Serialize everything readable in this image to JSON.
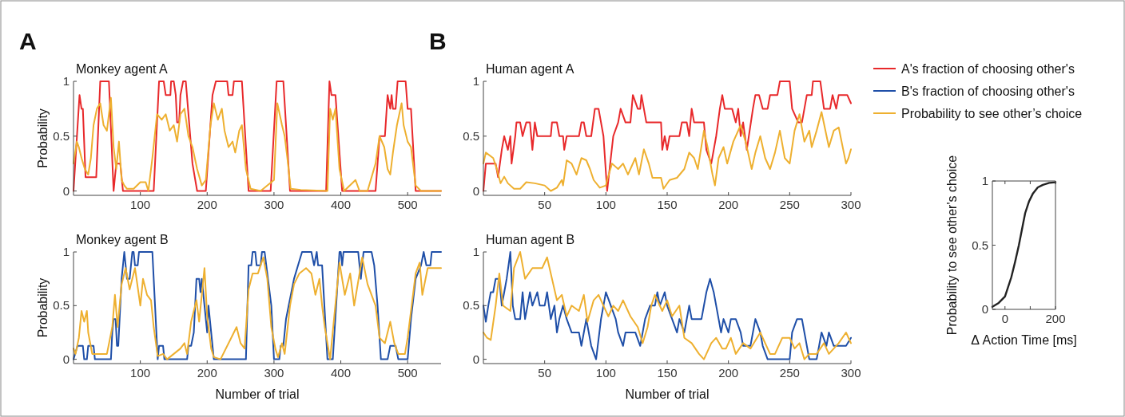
{
  "chart_data": [
    {
      "type": "line",
      "title": "Monkey agent A",
      "ylabel": "Probability",
      "annotations": [
        "A"
      ],
      "xlim": [
        0,
        550
      ],
      "xticks": [
        100,
        200,
        300,
        400,
        500
      ],
      "ylim": [
        -0.04,
        1
      ],
      "yticks": [
        0,
        0.5,
        1
      ],
      "series": [
        {
          "color": "#e8292b",
          "x": [
            0,
            9,
            12,
            14,
            18,
            34,
            40,
            53,
            60,
            64,
            70,
            74,
            120,
            128,
            135,
            138,
            145,
            146,
            150,
            153,
            155,
            158,
            160,
            164,
            168,
            178,
            185,
            198,
            208,
            213,
            230,
            232,
            238,
            240,
            252,
            262,
            295,
            304,
            314,
            324,
            378,
            383,
            386,
            392,
            402,
            452,
            458,
            466,
            470,
            474,
            476,
            478,
            482,
            485,
            497,
            500,
            505,
            512,
            550
          ],
          "values": [
            0,
            0.875,
            0.75,
            0.75,
            0.125,
            0.125,
            1,
            1,
            0,
            0.25,
            0.25,
            0,
            0,
            1,
            1,
            0.875,
            0.875,
            1,
            1,
            0.875,
            0.625,
            0.625,
            0.875,
            1,
            1,
            0.25,
            0,
            0,
            0.875,
            1,
            1,
            0.875,
            0.875,
            1,
            1,
            0,
            0,
            1,
            1,
            0,
            0,
            1,
            0.875,
            0.875,
            0,
            0,
            0.5,
            0.5,
            0.875,
            0.75,
            0.875,
            0.75,
            0.75,
            1,
            1,
            0.75,
            0.75,
            0,
            0
          ]
        },
        {
          "color": "#eeb030",
          "x": [
            0,
            5,
            8,
            12,
            17,
            22,
            26,
            30,
            35,
            40,
            45,
            50,
            56,
            60,
            64,
            68,
            72,
            76,
            80,
            90,
            100,
            108,
            112,
            118,
            125,
            132,
            138,
            144,
            150,
            155,
            160,
            166,
            172,
            178,
            185,
            192,
            198,
            205,
            210,
            216,
            222,
            226,
            232,
            238,
            242,
            248,
            252,
            258,
            265,
            280,
            300,
            305,
            312,
            316,
            320,
            325,
            340,
            380,
            384,
            388,
            392,
            398,
            405,
            422,
            428,
            440,
            452,
            458,
            465,
            470,
            474,
            478,
            484,
            491,
            494,
            500,
            505,
            512,
            520,
            550
          ],
          "values": [
            0.25,
            0.45,
            0.4,
            0.3,
            0.2,
            0.15,
            0.3,
            0.6,
            0.75,
            0.8,
            0.6,
            0.55,
            0.85,
            0.4,
            0.2,
            0.45,
            0.1,
            0.05,
            0.02,
            0.02,
            0.08,
            0.08,
            0,
            0.3,
            0.7,
            0.65,
            0.7,
            0.55,
            0.6,
            0.45,
            0.7,
            0.75,
            0.5,
            0.4,
            0.2,
            0.05,
            0.1,
            0.6,
            0.8,
            0.65,
            0.75,
            0.55,
            0.4,
            0.45,
            0.35,
            0.55,
            0.6,
            0.2,
            0.02,
            0,
            0.1,
            0.8,
            0.6,
            0.5,
            0.3,
            0.02,
            0.01,
            0,
            0.75,
            0.65,
            0.75,
            0.2,
            0,
            0.1,
            0,
            0,
            0.25,
            0.5,
            0.4,
            0.2,
            0.15,
            0.35,
            0.6,
            0.8,
            0.6,
            0.45,
            0.4,
            0.05,
            0,
            0
          ]
        }
      ]
    },
    {
      "type": "line",
      "title": "Monkey agent B",
      "xlabel": "Number of trial",
      "ylabel": "Probability",
      "xlim": [
        0,
        550
      ],
      "xticks": [
        100,
        200,
        300,
        400,
        500
      ],
      "ylim": [
        -0.04,
        1
      ],
      "yticks": [
        0,
        0.5,
        1
      ],
      "series": [
        {
          "color": "#1f4fa8",
          "x": [
            0,
            6,
            14,
            16,
            20,
            22,
            30,
            32,
            56,
            58,
            60,
            63,
            65,
            67,
            68,
            72,
            76,
            80,
            84,
            88,
            90,
            92,
            96,
            98,
            118,
            122,
            126,
            128,
            134,
            136,
            170,
            172,
            176,
            180,
            184,
            188,
            190,
            192,
            196,
            200,
            202,
            206,
            210,
            258,
            262,
            266,
            268,
            272,
            274,
            280,
            282,
            286,
            296,
            300,
            308,
            310,
            314,
            318,
            322,
            330,
            336,
            342,
            356,
            360,
            364,
            366,
            372,
            380,
            388,
            398,
            400,
            402,
            404,
            426,
            430,
            434,
            446,
            450,
            455,
            460,
            470,
            474,
            482,
            486,
            500,
            505,
            512,
            520,
            524,
            528,
            534,
            536,
            550
          ],
          "values": [
            0,
            0.125,
            0.125,
            0,
            0,
            0.125,
            0.125,
            0,
            0,
            0.25,
            0.375,
            0.375,
            0.125,
            0.125,
            0.25,
            0.75,
            1,
            0.75,
            0.75,
            1,
            1,
            0.875,
            0.875,
            1,
            1,
            0.5,
            0,
            0.125,
            0.125,
            0,
            0,
            0.125,
            0.125,
            0.25,
            0.75,
            0.75,
            0.625,
            0.75,
            0.5,
            0.25,
            0.5,
            0.25,
            0,
            0,
            0.875,
            0.875,
            1,
            1,
            0.875,
            0.875,
            1,
            1,
            0.5,
            0,
            0,
            0.125,
            0.125,
            0.375,
            0.5,
            0.75,
            0.875,
            1,
            1,
            0.875,
            1,
            0.875,
            0.875,
            0,
            0,
            1,
            1,
            0.875,
            1,
            1,
            0.75,
            1,
            1,
            0.875,
            0.5,
            0,
            0,
            0.125,
            0.125,
            0,
            0,
            0.375,
            0.75,
            0.875,
            1,
            0.875,
            0.875,
            1,
            1
          ]
        },
        {
          "color": "#eeb030",
          "x": [
            0,
            3,
            8,
            12,
            16,
            20,
            22,
            28,
            50,
            58,
            62,
            66,
            72,
            78,
            84,
            92,
            100,
            104,
            110,
            116,
            120,
            126,
            134,
            140,
            160,
            166,
            170,
            176,
            184,
            188,
            196,
            200,
            206,
            210,
            220,
            236,
            244,
            250,
            256,
            262,
            268,
            276,
            284,
            290,
            296,
            302,
            306,
            312,
            316,
            324,
            330,
            338,
            348,
            356,
            362,
            368,
            372,
            376,
            384,
            398,
            406,
            414,
            420,
            432,
            440,
            452,
            458,
            466,
            474,
            480,
            486,
            496,
            500,
            506,
            512,
            518,
            522,
            530,
            544,
            550
          ],
          "values": [
            0.1,
            0.05,
            0.2,
            0.45,
            0.35,
            0.45,
            0.25,
            0.05,
            0.05,
            0.3,
            0.6,
            0.3,
            0.7,
            0.85,
            0.65,
            0.85,
            0.5,
            0.75,
            0.6,
            0.55,
            0.3,
            0.03,
            0.05,
            0,
            0.1,
            0.15,
            0.05,
            0.35,
            0.55,
            0.35,
            0.85,
            0.4,
            0.1,
            0.02,
            0,
            0.2,
            0.3,
            0.15,
            0.1,
            0.65,
            0.8,
            0.8,
            0.95,
            0.75,
            0.3,
            0.1,
            0.02,
            0.15,
            0.05,
            0.5,
            0.7,
            0.8,
            0.85,
            0.8,
            0.6,
            0.75,
            0.5,
            0.3,
            0,
            0.9,
            0.6,
            0.8,
            0.5,
            0.95,
            0.7,
            0.5,
            0.2,
            0.15,
            0.35,
            0.15,
            0.05,
            0.05,
            0.2,
            0.5,
            0.8,
            0.9,
            0.6,
            0.85,
            0.85,
            0.85
          ]
        }
      ]
    },
    {
      "type": "line",
      "title": "Human agent A",
      "annotations": [
        "B"
      ],
      "legend": "top right",
      "xlim": [
        0,
        300
      ],
      "xticks": [
        50,
        100,
        150,
        200,
        250,
        300
      ],
      "ylim": [
        -0.04,
        1
      ],
      "yticks": [
        0,
        0.5,
        1
      ],
      "series": [
        {
          "name": "A's fraction of choosing other's",
          "color": "#e8292b",
          "x": [
            0,
            2,
            10,
            12,
            15,
            17,
            20,
            22,
            23,
            26,
            27,
            30,
            32,
            35,
            38,
            40,
            42,
            44,
            55,
            56,
            60,
            62,
            65,
            66,
            68,
            78,
            80,
            82,
            84,
            88,
            91,
            94,
            98,
            101,
            106,
            110,
            112,
            116,
            120,
            122,
            126,
            128,
            129,
            133,
            145,
            146,
            148,
            150,
            152,
            160,
            162,
            166,
            168,
            170,
            172,
            180,
            182,
            186,
            190,
            193,
            195,
            197,
            203,
            206,
            208,
            210,
            212,
            215,
            220,
            222,
            225,
            228,
            232,
            234,
            240,
            242,
            250,
            252,
            257,
            260,
            264,
            268,
            269,
            275,
            278,
            283,
            285,
            288,
            290,
            297,
            300
          ],
          "values": [
            0,
            0.25,
            0.25,
            0.125,
            0.375,
            0.5,
            0.375,
            0.5,
            0.25,
            0.5,
            0.625,
            0.625,
            0.5,
            0.625,
            0.625,
            0.375,
            0.625,
            0.5,
            0.5,
            0.625,
            0.625,
            0.5,
            0.5,
            0.375,
            0.5,
            0.5,
            0.625,
            0.625,
            0.5,
            0.5,
            0.75,
            0.75,
            0.5,
            0,
            0.5,
            0.625,
            0.75,
            0.625,
            0.625,
            0.875,
            0.75,
            0.75,
            0.875,
            0.625,
            0.625,
            0.375,
            0.5,
            0.375,
            0.5,
            0.5,
            0.625,
            0.625,
            0.5,
            0.75,
            0.625,
            0.625,
            0.375,
            0.25,
            0.5,
            0.75,
            0.875,
            0.75,
            0.75,
            0.625,
            0.75,
            0.5,
            0.625,
            0.375,
            0.75,
            0.875,
            0.875,
            0.75,
            0.75,
            0.875,
            0.875,
            1,
            1,
            0.75,
            0.625,
            0.625,
            0.875,
            0.875,
            1,
            1,
            0.75,
            0.75,
            0.875,
            0.75,
            0.875,
            0.875,
            0.8
          ]
        },
        {
          "color": "#eeb030",
          "x": [
            0,
            2,
            8,
            11,
            14,
            17,
            20,
            25,
            30,
            35,
            42,
            50,
            55,
            60,
            64,
            65,
            68,
            72,
            76,
            80,
            84,
            87,
            90,
            95,
            100,
            101,
            105,
            110,
            114,
            118,
            124,
            127,
            131,
            135,
            138,
            145,
            147,
            152,
            158,
            164,
            168,
            172,
            175,
            180,
            183,
            187,
            189,
            192,
            196,
            199,
            204,
            210,
            214,
            219,
            222,
            226,
            230,
            234,
            238,
            242,
            246,
            250,
            254,
            258,
            262,
            266,
            268,
            272,
            276,
            282,
            286,
            290,
            296,
            298,
            300
          ],
          "values": [
            0.25,
            0.35,
            0.3,
            0.2,
            0.07,
            0.13,
            0.07,
            0.02,
            0.02,
            0.08,
            0.07,
            0.05,
            0,
            0.03,
            0.1,
            0.05,
            0.28,
            0.25,
            0.15,
            0.3,
            0.28,
            0.2,
            0.1,
            0.03,
            0.05,
            0.1,
            0.25,
            0.2,
            0.25,
            0.15,
            0.3,
            0.15,
            0.38,
            0.25,
            0.12,
            0.12,
            0.02,
            0.1,
            0.12,
            0.2,
            0.35,
            0.3,
            0.2,
            0.55,
            0.4,
            0.15,
            0.05,
            0.3,
            0.4,
            0.25,
            0.45,
            0.6,
            0.45,
            0.2,
            0.35,
            0.5,
            0.3,
            0.2,
            0.35,
            0.55,
            0.3,
            0.25,
            0.55,
            0.7,
            0.45,
            0.55,
            0.4,
            0.55,
            0.72,
            0.4,
            0.55,
            0.58,
            0.25,
            0.3,
            0.38
          ]
        }
      ]
    },
    {
      "type": "line",
      "title": "Human agent B",
      "xlabel": "Number of trial",
      "legend": "top right",
      "xlim": [
        0,
        300
      ],
      "xticks": [
        50,
        100,
        150,
        200,
        250,
        300
      ],
      "ylim": [
        -0.04,
        1
      ],
      "yticks": [
        0,
        0.5,
        1
      ],
      "series": [
        {
          "name": "B's fraction of choosing other's",
          "color": "#1f4fa8",
          "x": [
            0,
            2,
            4,
            6,
            8,
            10,
            13,
            15,
            17,
            19,
            22,
            24,
            26,
            30,
            32,
            34,
            36,
            38,
            40,
            44,
            46,
            50,
            52,
            55,
            58,
            60,
            62,
            65,
            68,
            72,
            78,
            80,
            84,
            88,
            92,
            96,
            100,
            104,
            108,
            110,
            114,
            116,
            124,
            128,
            132,
            136,
            140,
            142,
            144,
            148,
            150,
            154,
            158,
            160,
            164,
            168,
            170,
            178,
            182,
            185,
            188,
            192,
            194,
            196,
            200,
            202,
            206,
            210,
            212,
            218,
            222,
            226,
            228,
            232,
            250,
            252,
            256,
            260,
            262,
            264,
            266,
            272,
            276,
            280,
            282,
            286,
            296,
            300
          ],
          "values": [
            0.5,
            0.35,
            0.5,
            0.625,
            0.625,
            0.75,
            0.75,
            0.5,
            0.625,
            0.75,
            1,
            0.5,
            0.375,
            0.375,
            0.625,
            0.375,
            0.5,
            0.625,
            0.5,
            0.625,
            0.5,
            0.5,
            0.625,
            0.375,
            0.5,
            0.25,
            0.375,
            0.5,
            0.375,
            0.25,
            0.25,
            0.125,
            0.375,
            0.125,
            0,
            0.375,
            0.625,
            0.5,
            0.375,
            0.25,
            0.125,
            0.25,
            0.25,
            0.125,
            0.375,
            0.5,
            0.5,
            0.625,
            0.5,
            0.625,
            0.5,
            0.375,
            0.25,
            0.375,
            0.25,
            0.5,
            0.375,
            0.375,
            0.625,
            0.75,
            0.625,
            0.375,
            0.25,
            0.375,
            0.25,
            0.375,
            0.375,
            0.25,
            0.125,
            0.125,
            0.375,
            0.25,
            0.125,
            0,
            0,
            0.25,
            0.375,
            0.375,
            0.25,
            0.125,
            0,
            0,
            0.25,
            0.125,
            0.25,
            0.125,
            0.125,
            0.2
          ]
        },
        {
          "name": "Probability to see other’s choice",
          "color": "#eeb030",
          "x": [
            0,
            3,
            6,
            10,
            13,
            16,
            22,
            25,
            30,
            34,
            40,
            48,
            52,
            57,
            60,
            64,
            68,
            72,
            78,
            82,
            85,
            90,
            94,
            98,
            102,
            106,
            110,
            114,
            120,
            126,
            130,
            134,
            137,
            140,
            146,
            150,
            154,
            160,
            164,
            170,
            176,
            180,
            186,
            190,
            195,
            198,
            202,
            206,
            212,
            218,
            226,
            234,
            238,
            244,
            250,
            254,
            258,
            262,
            266,
            272,
            278,
            282,
            290,
            296,
            300
          ],
          "values": [
            0.25,
            0.2,
            0.18,
            0.5,
            0.8,
            0.5,
            0.45,
            0.85,
            1,
            0.75,
            0.85,
            0.85,
            0.95,
            0.7,
            0.55,
            0.6,
            0.4,
            0.5,
            0.45,
            0.6,
            0.35,
            0.55,
            0.6,
            0.5,
            0.4,
            0.5,
            0.45,
            0.55,
            0.4,
            0.3,
            0.15,
            0.3,
            0.5,
            0.6,
            0.45,
            0.55,
            0.4,
            0.5,
            0.2,
            0.15,
            0.05,
            0,
            0.15,
            0.2,
            0.1,
            0.1,
            0.2,
            0.05,
            0.15,
            0.1,
            0.25,
            0.05,
            0.05,
            0.2,
            0.2,
            0.1,
            0.15,
            0,
            0.05,
            0.05,
            0.15,
            0.05,
            0.15,
            0.25,
            0.15
          ]
        }
      ]
    },
    {
      "type": "line",
      "xlabel": "Δ Action Time [ms]",
      "ylabel": "Probability to see other's choice",
      "xlim": [
        -50,
        200
      ],
      "xticks": [
        0,
        {
          "value": 100,
          "label": null
        },
        200
      ],
      "ylim": [
        0,
        1
      ],
      "yticks": [
        0,
        0.5,
        1
      ],
      "series": [
        {
          "color": "#222222",
          "x": [
            -50,
            -25,
            0,
            25,
            40,
            55,
            70,
            80,
            95,
            110,
            130,
            150,
            175,
            200
          ],
          "values": [
            0.02,
            0.05,
            0.1,
            0.25,
            0.37,
            0.5,
            0.65,
            0.75,
            0.84,
            0.9,
            0.95,
            0.97,
            0.985,
            0.99
          ]
        }
      ]
    }
  ]
}
